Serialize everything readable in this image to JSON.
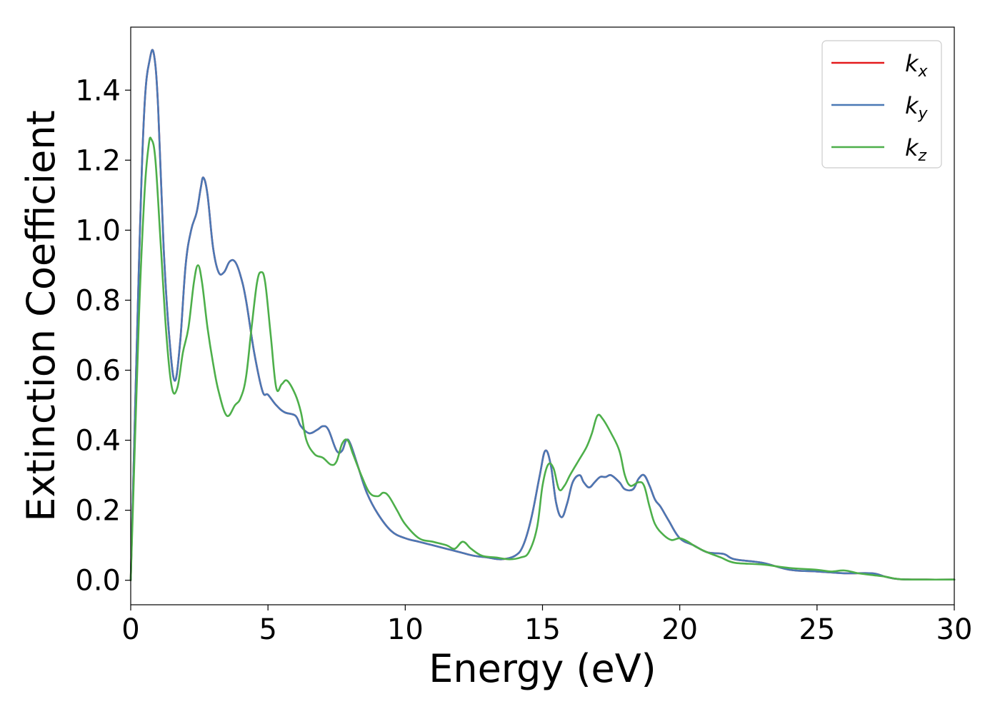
{
  "chart_data": {
    "type": "line",
    "title": "",
    "xlabel": "Energy (eV)",
    "ylabel": "Extinction Coefficient",
    "xlim": [
      0,
      30
    ],
    "ylim": [
      -0.07,
      1.58
    ],
    "xticks": [
      0,
      5,
      10,
      15,
      20,
      25,
      30
    ],
    "xtick_labels": [
      "0",
      "5",
      "10",
      "15",
      "20",
      "25",
      "30"
    ],
    "yticks": [
      0.0,
      0.2,
      0.4,
      0.6,
      0.8,
      1.0,
      1.2,
      1.4
    ],
    "ytick_labels": [
      "0.0",
      "0.2",
      "0.4",
      "0.6",
      "0.8",
      "1.0",
      "1.2",
      "1.4"
    ],
    "grid": false,
    "legend_position": "top-right",
    "series": [
      {
        "name": "k",
        "subscript": "x",
        "color": "#e41a1c",
        "x": [
          0,
          0.3,
          0.5,
          0.7,
          0.85,
          1.0,
          1.2,
          1.4,
          1.6,
          1.8,
          2.0,
          2.2,
          2.4,
          2.55,
          2.65,
          2.8,
          3.0,
          3.2,
          3.4,
          3.6,
          3.8,
          4.0,
          4.2,
          4.5,
          4.8,
          5.0,
          5.3,
          5.6,
          6.0,
          6.2,
          6.5,
          6.8,
          7.0,
          7.2,
          7.5,
          7.7,
          7.85,
          8.0,
          8.3,
          8.6,
          9.0,
          9.5,
          10.0,
          10.5,
          11.0,
          11.5,
          12.0,
          12.5,
          13.0,
          13.5,
          14.0,
          14.3,
          14.6,
          14.9,
          15.1,
          15.3,
          15.5,
          15.7,
          15.9,
          16.1,
          16.35,
          16.5,
          16.7,
          16.9,
          17.1,
          17.3,
          17.5,
          17.8,
          18.0,
          18.3,
          18.5,
          18.7,
          18.9,
          19.1,
          19.3,
          19.6,
          20.0,
          20.5,
          21.0,
          21.6,
          22.0,
          23.0,
          24.0,
          25.0,
          26.0,
          27.0,
          27.5,
          28.0,
          29.0,
          30.0
        ],
        "y": [
          0.0,
          0.9,
          1.35,
          1.49,
          1.5,
          1.35,
          0.95,
          0.7,
          0.57,
          0.68,
          0.9,
          1.0,
          1.05,
          1.12,
          1.15,
          1.1,
          0.95,
          0.88,
          0.88,
          0.91,
          0.91,
          0.87,
          0.8,
          0.65,
          0.54,
          0.53,
          0.5,
          0.48,
          0.47,
          0.44,
          0.42,
          0.43,
          0.44,
          0.43,
          0.37,
          0.37,
          0.4,
          0.39,
          0.32,
          0.25,
          0.19,
          0.14,
          0.12,
          0.11,
          0.1,
          0.09,
          0.08,
          0.07,
          0.065,
          0.06,
          0.07,
          0.1,
          0.18,
          0.3,
          0.37,
          0.33,
          0.22,
          0.18,
          0.22,
          0.28,
          0.3,
          0.28,
          0.265,
          0.28,
          0.295,
          0.295,
          0.3,
          0.28,
          0.26,
          0.26,
          0.29,
          0.3,
          0.27,
          0.23,
          0.21,
          0.17,
          0.12,
          0.1,
          0.08,
          0.075,
          0.06,
          0.05,
          0.03,
          0.025,
          0.02,
          0.02,
          0.01,
          0.003,
          0.002,
          0.002
        ]
      },
      {
        "name": "k",
        "subscript": "y",
        "color": "#4a78b5",
        "x": [
          0,
          0.3,
          0.5,
          0.7,
          0.85,
          1.0,
          1.2,
          1.4,
          1.6,
          1.8,
          2.0,
          2.2,
          2.4,
          2.55,
          2.65,
          2.8,
          3.0,
          3.2,
          3.4,
          3.6,
          3.8,
          4.0,
          4.2,
          4.5,
          4.8,
          5.0,
          5.3,
          5.6,
          6.0,
          6.2,
          6.5,
          6.8,
          7.0,
          7.2,
          7.5,
          7.7,
          7.85,
          8.0,
          8.3,
          8.6,
          9.0,
          9.5,
          10.0,
          10.5,
          11.0,
          11.5,
          12.0,
          12.5,
          13.0,
          13.5,
          14.0,
          14.3,
          14.6,
          14.9,
          15.1,
          15.3,
          15.5,
          15.7,
          15.9,
          16.1,
          16.35,
          16.5,
          16.7,
          16.9,
          17.1,
          17.3,
          17.5,
          17.8,
          18.0,
          18.3,
          18.5,
          18.7,
          18.9,
          19.1,
          19.3,
          19.6,
          20.0,
          20.5,
          21.0,
          21.6,
          22.0,
          23.0,
          24.0,
          25.0,
          26.0,
          27.0,
          27.5,
          28.0,
          29.0,
          30.0
        ],
        "y": [
          0.0,
          0.9,
          1.35,
          1.49,
          1.5,
          1.35,
          0.95,
          0.7,
          0.57,
          0.68,
          0.9,
          1.0,
          1.05,
          1.12,
          1.15,
          1.1,
          0.95,
          0.88,
          0.88,
          0.91,
          0.91,
          0.87,
          0.8,
          0.65,
          0.54,
          0.53,
          0.5,
          0.48,
          0.47,
          0.44,
          0.42,
          0.43,
          0.44,
          0.43,
          0.37,
          0.37,
          0.4,
          0.39,
          0.32,
          0.25,
          0.19,
          0.14,
          0.12,
          0.11,
          0.1,
          0.09,
          0.08,
          0.07,
          0.065,
          0.06,
          0.07,
          0.1,
          0.18,
          0.3,
          0.37,
          0.33,
          0.22,
          0.18,
          0.22,
          0.28,
          0.3,
          0.28,
          0.265,
          0.28,
          0.295,
          0.295,
          0.3,
          0.28,
          0.26,
          0.26,
          0.29,
          0.3,
          0.27,
          0.23,
          0.21,
          0.17,
          0.12,
          0.1,
          0.08,
          0.075,
          0.06,
          0.05,
          0.03,
          0.025,
          0.02,
          0.02,
          0.01,
          0.003,
          0.002,
          0.002
        ]
      },
      {
        "name": "k",
        "subscript": "z",
        "color": "#4daf4a",
        "x": [
          0,
          0.3,
          0.5,
          0.65,
          0.75,
          0.9,
          1.1,
          1.3,
          1.5,
          1.7,
          1.9,
          2.1,
          2.3,
          2.45,
          2.6,
          2.8,
          3.0,
          3.2,
          3.5,
          3.8,
          4.0,
          4.2,
          4.4,
          4.6,
          4.75,
          4.9,
          5.1,
          5.3,
          5.5,
          5.7,
          6.0,
          6.2,
          6.4,
          6.7,
          7.0,
          7.3,
          7.5,
          7.7,
          7.9,
          8.1,
          8.4,
          8.7,
          9.0,
          9.2,
          9.4,
          9.7,
          10.0,
          10.5,
          11.0,
          11.5,
          11.8,
          12.1,
          12.4,
          12.8,
          13.3,
          13.8,
          14.2,
          14.5,
          14.8,
          15.0,
          15.2,
          15.4,
          15.6,
          15.8,
          16.0,
          16.3,
          16.6,
          16.8,
          17.0,
          17.2,
          17.5,
          17.8,
          18.0,
          18.2,
          18.5,
          18.7,
          18.9,
          19.1,
          19.4,
          19.7,
          20.0,
          20.3,
          20.6,
          21.0,
          21.5,
          22.0,
          23.0,
          24.0,
          25.0,
          25.5,
          26.0,
          26.5,
          27.0,
          27.5,
          28.0,
          29.0,
          30.0
        ],
        "y": [
          0.0,
          0.75,
          1.1,
          1.24,
          1.26,
          1.2,
          0.95,
          0.7,
          0.55,
          0.55,
          0.65,
          0.72,
          0.85,
          0.9,
          0.85,
          0.72,
          0.62,
          0.54,
          0.47,
          0.5,
          0.52,
          0.58,
          0.72,
          0.85,
          0.88,
          0.85,
          0.7,
          0.55,
          0.56,
          0.57,
          0.53,
          0.48,
          0.4,
          0.36,
          0.35,
          0.33,
          0.34,
          0.39,
          0.4,
          0.36,
          0.3,
          0.25,
          0.24,
          0.25,
          0.24,
          0.2,
          0.16,
          0.12,
          0.11,
          0.1,
          0.09,
          0.11,
          0.09,
          0.07,
          0.065,
          0.06,
          0.065,
          0.08,
          0.15,
          0.27,
          0.33,
          0.32,
          0.26,
          0.27,
          0.3,
          0.34,
          0.38,
          0.42,
          0.47,
          0.46,
          0.42,
          0.37,
          0.3,
          0.27,
          0.28,
          0.27,
          0.21,
          0.16,
          0.13,
          0.115,
          0.12,
          0.11,
          0.095,
          0.08,
          0.065,
          0.05,
          0.045,
          0.035,
          0.03,
          0.025,
          0.028,
          0.02,
          0.015,
          0.01,
          0.003,
          0.002,
          0.002
        ]
      }
    ]
  }
}
